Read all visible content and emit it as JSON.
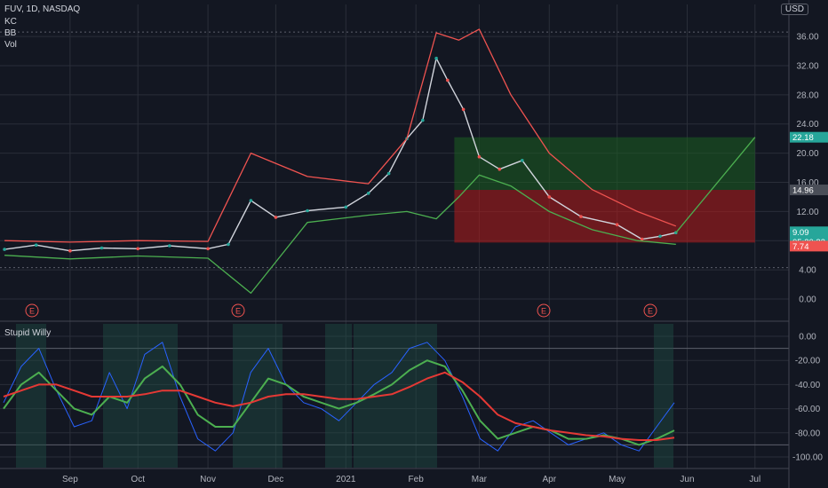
{
  "header": {
    "symbol_line": "FUV, 1D, NASDAQ",
    "indicators": [
      "KC",
      "BB",
      "Vol"
    ],
    "currency": "USD",
    "top_tick_partial": "40"
  },
  "lower_panel": {
    "title": "Stupid Willy"
  },
  "colors": {
    "background": "#131722",
    "up": "#26a69a",
    "down": "#ef5350",
    "bb_band": "#ef5350",
    "kc_band": "#4caf50",
    "osc_fast": "#2962ff",
    "osc_mid": "#4caf50",
    "osc_slow": "#e53935",
    "profit_zone": "#1b5e20",
    "loss_zone": "#b71c1c"
  },
  "chart_data": [
    {
      "type": "line",
      "title": "FUV, 1D, NASDAQ",
      "x_ticks": [
        "Sep",
        "Oct",
        "Nov",
        "Dec",
        "2021",
        "Feb",
        "Mar",
        "Apr",
        "May",
        "Jun",
        "Jul"
      ],
      "y_ticks": [
        "0.00",
        "4.00",
        "8.00",
        "12.00",
        "16.00",
        "20.00",
        "24.00",
        "28.00",
        "32.00",
        "36.00"
      ],
      "ylim": [
        0,
        40
      ],
      "grid": true,
      "price_labels": [
        {
          "value": "22.18",
          "color": "#26a69a"
        },
        {
          "value": "14.96",
          "color": "#4a4e58"
        },
        {
          "value": "9.09",
          "color": "#26a69a"
        },
        {
          "value": "05:20:23",
          "color": "#26a69a"
        },
        {
          "value": "7.74",
          "color": "#ef5350"
        }
      ],
      "earnings_markers": [
        "E",
        "E",
        "E",
        "E"
      ],
      "series": [
        {
          "role": "close",
          "x": [
            "2020-08-03",
            "2020-08-17",
            "2020-09-01",
            "2020-09-15",
            "2020-10-01",
            "2020-10-15",
            "2020-11-01",
            "2020-11-10",
            "2020-11-20",
            "2020-12-01",
            "2020-12-15",
            "2021-01-01",
            "2021-01-11",
            "2021-01-20",
            "2021-01-28",
            "2021-02-04",
            "2021-02-10",
            "2021-02-15",
            "2021-02-22",
            "2021-03-01",
            "2021-03-10",
            "2021-03-20",
            "2021-04-01",
            "2021-04-15",
            "2021-05-01",
            "2021-05-12",
            "2021-05-20",
            "2021-05-27"
          ],
          "values": [
            6.8,
            7.4,
            6.6,
            7.0,
            6.9,
            7.3,
            6.9,
            7.5,
            13.5,
            11.2,
            12.1,
            12.6,
            14.5,
            17.2,
            22.0,
            24.5,
            33.0,
            30.0,
            26.0,
            19.5,
            17.8,
            19.0,
            14.0,
            11.3,
            10.2,
            8.2,
            8.6,
            9.1
          ]
        },
        {
          "role": "bb_upper",
          "x": [
            "2020-08-03",
            "2020-09-01",
            "2020-10-01",
            "2020-11-01",
            "2020-11-20",
            "2020-12-15",
            "2021-01-11",
            "2021-01-28",
            "2021-02-10",
            "2021-02-20",
            "2021-03-01",
            "2021-03-15",
            "2021-04-01",
            "2021-04-20",
            "2021-05-10",
            "2021-05-27"
          ],
          "values": [
            8.0,
            7.8,
            8.0,
            7.9,
            20.0,
            16.8,
            15.8,
            22.0,
            36.5,
            35.5,
            37.0,
            28.0,
            20.0,
            15.0,
            12.0,
            10.0
          ]
        },
        {
          "role": "kc_lower",
          "x": [
            "2020-08-03",
            "2020-09-01",
            "2020-10-01",
            "2020-11-01",
            "2020-11-20",
            "2020-12-15",
            "2021-01-11",
            "2021-01-28",
            "2021-02-10",
            "2021-02-20",
            "2021-03-01",
            "2021-03-15",
            "2021-04-01",
            "2021-04-20",
            "2021-05-10",
            "2021-05-27"
          ],
          "values": [
            6.0,
            5.5,
            5.9,
            5.6,
            0.8,
            10.5,
            11.5,
            12.0,
            11.0,
            14.0,
            17.0,
            15.5,
            12.0,
            9.5,
            8.0,
            7.5
          ]
        }
      ],
      "trade_zone": {
        "entry": 14.96,
        "target": 22.18,
        "stop": 7.74,
        "start_x": "2021-02-18",
        "end_x": "2021-07-01"
      }
    },
    {
      "type": "line",
      "title": "Stupid Willy",
      "y_ticks": [
        "0.00",
        "-20.00",
        "-40.00",
        "-60.00",
        "-80.00",
        "-100.00"
      ],
      "ylim": [
        -100,
        0
      ],
      "series": [
        {
          "role": "fast",
          "values": [
            -55,
            -25,
            -10,
            -45,
            -75,
            -70,
            -30,
            -60,
            -15,
            -5,
            -50,
            -85,
            -95,
            -80,
            -30,
            -10,
            -40,
            -55,
            -60,
            -70,
            -55,
            -40,
            -30,
            -10,
            -5,
            -20,
            -50,
            -85,
            -95,
            -75,
            -70,
            -80,
            -90,
            -85,
            -80,
            -90,
            -95,
            -75,
            -55
          ]
        },
        {
          "role": "mid",
          "values": [
            -60,
            -40,
            -30,
            -45,
            -60,
            -65,
            -50,
            -55,
            -35,
            -25,
            -40,
            -65,
            -75,
            -75,
            -55,
            -35,
            -40,
            -50,
            -55,
            -60,
            -55,
            -48,
            -40,
            -28,
            -20,
            -25,
            -45,
            -70,
            -85,
            -80,
            -75,
            -78,
            -85,
            -85,
            -82,
            -85,
            -90,
            -85,
            -78
          ]
        },
        {
          "role": "slow",
          "values": [
            -50,
            -45,
            -40,
            -40,
            -45,
            -50,
            -50,
            -50,
            -48,
            -45,
            -45,
            -50,
            -55,
            -58,
            -55,
            -50,
            -48,
            -48,
            -50,
            -52,
            -52,
            -50,
            -48,
            -42,
            -35,
            -30,
            -38,
            -50,
            -65,
            -72,
            -75,
            -78,
            -80,
            -82,
            -83,
            -85,
            -86,
            -86,
            -84
          ]
        }
      ]
    }
  ]
}
